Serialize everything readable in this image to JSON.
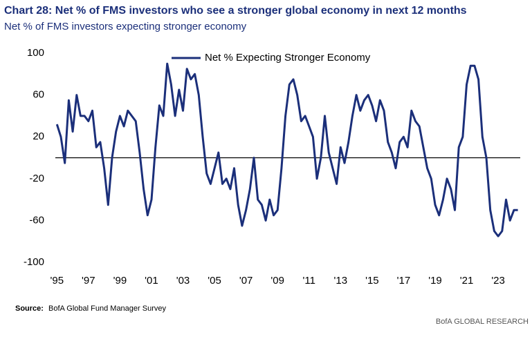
{
  "chart_data": {
    "type": "line",
    "title": "Chart 28: Net % of FMS investors who see a stronger global economy in next 12 months",
    "subtitle": "Net % of FMS investors expecting stronger economy",
    "source_label": "Source:",
    "source": "BofA Global Fund Manager Survey",
    "brand": "BofA GLOBAL RESEARCH",
    "x": [
      1995,
      1995.25,
      1995.5,
      1995.75,
      1996,
      1996.25,
      1996.5,
      1996.75,
      1997,
      1997.25,
      1997.5,
      1997.75,
      1998,
      1998.25,
      1998.5,
      1998.75,
      1999,
      1999.25,
      1999.5,
      1999.75,
      2000,
      2000.25,
      2000.5,
      2000.75,
      2001,
      2001.25,
      2001.5,
      2001.75,
      2002,
      2002.25,
      2002.5,
      2002.75,
      2003,
      2003.25,
      2003.5,
      2003.75,
      2004,
      2004.25,
      2004.5,
      2004.75,
      2005,
      2005.25,
      2005.5,
      2005.75,
      2006,
      2006.25,
      2006.5,
      2006.75,
      2007,
      2007.25,
      2007.5,
      2007.75,
      2008,
      2008.25,
      2008.5,
      2008.75,
      2009,
      2009.25,
      2009.5,
      2009.75,
      2010,
      2010.25,
      2010.5,
      2010.75,
      2011,
      2011.25,
      2011.5,
      2011.75,
      2012,
      2012.25,
      2012.5,
      2012.75,
      2013,
      2013.25,
      2013.5,
      2013.75,
      2014,
      2014.25,
      2014.5,
      2014.75,
      2015,
      2015.25,
      2015.5,
      2015.75,
      2016,
      2016.25,
      2016.5,
      2016.75,
      2017,
      2017.25,
      2017.5,
      2017.75,
      2018,
      2018.25,
      2018.5,
      2018.75,
      2019,
      2019.25,
      2019.5,
      2019.75,
      2020,
      2020.25,
      2020.5,
      2020.75,
      2021,
      2021.25,
      2021.5,
      2021.75,
      2022,
      2022.25,
      2022.5,
      2022.75,
      2023,
      2023.25,
      2023.5,
      2023.75,
      2024,
      2024.25
    ],
    "series": [
      {
        "name": "Net % Expecting Stronger Economy",
        "color": "#1b2f7a",
        "values": [
          32,
          20,
          -5,
          55,
          25,
          60,
          40,
          40,
          35,
          45,
          10,
          15,
          -10,
          -45,
          0,
          25,
          40,
          30,
          45,
          40,
          35,
          5,
          -30,
          -55,
          -40,
          10,
          50,
          40,
          90,
          70,
          40,
          65,
          45,
          85,
          75,
          80,
          60,
          20,
          -15,
          -25,
          -10,
          5,
          -25,
          -20,
          -30,
          -10,
          -45,
          -65,
          -50,
          -30,
          0,
          -40,
          -45,
          -60,
          -40,
          -55,
          -50,
          -10,
          40,
          70,
          75,
          60,
          35,
          40,
          30,
          20,
          -20,
          0,
          40,
          5,
          -10,
          -25,
          10,
          -5,
          15,
          40,
          60,
          45,
          55,
          60,
          50,
          35,
          55,
          45,
          15,
          5,
          -10,
          15,
          20,
          10,
          45,
          35,
          30,
          10,
          -10,
          -20,
          -45,
          -55,
          -40,
          -20,
          -30,
          -50,
          10,
          20,
          70,
          88,
          88,
          75,
          20,
          0,
          -50,
          -70,
          -75,
          -70,
          -40,
          -60,
          -50,
          -50
        ]
      }
    ],
    "reference_line": 0,
    "xlim": [
      1994.9,
      2024.4
    ],
    "xticks": [
      {
        "value": 1995,
        "label": "'95"
      },
      {
        "value": 1997,
        "label": "'97"
      },
      {
        "value": 1999,
        "label": "'99"
      },
      {
        "value": 2001,
        "label": "'01"
      },
      {
        "value": 2003,
        "label": "'03"
      },
      {
        "value": 2005,
        "label": "'05"
      },
      {
        "value": 2007,
        "label": "'07"
      },
      {
        "value": 2009,
        "label": "'09"
      },
      {
        "value": 2011,
        "label": "'11"
      },
      {
        "value": 2013,
        "label": "'13"
      },
      {
        "value": 2015,
        "label": "'15"
      },
      {
        "value": 2017,
        "label": "'17"
      },
      {
        "value": 2019,
        "label": "'19"
      },
      {
        "value": 2021,
        "label": "'21"
      },
      {
        "value": 2023,
        "label": "'23"
      }
    ],
    "ylim": [
      -100,
      100
    ],
    "yticks": [
      -100,
      -60,
      -20,
      20,
      60,
      100
    ],
    "grid": false,
    "legend": "top"
  }
}
